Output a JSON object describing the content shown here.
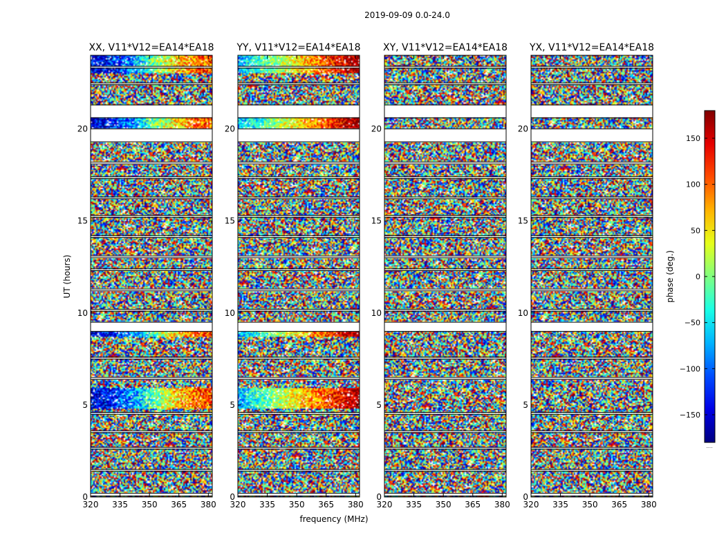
{
  "chart_data": {
    "type": "heatmap",
    "suptitle": "2019-09-09 0.0-24.0",
    "xlabel": "frequency (MHz)",
    "ylabel": "UT (hours)",
    "xlim": [
      320,
      382
    ],
    "ylim": [
      0,
      24
    ],
    "xticks": [
      320,
      335,
      350,
      365,
      380
    ],
    "yticks": [
      0,
      5,
      10,
      15,
      20
    ],
    "panels": [
      {
        "title": "XX, V11*V12=EA14*EA18",
        "pol": "XX"
      },
      {
        "title": "YY, V11*V12=EA14*EA18",
        "pol": "YY"
      },
      {
        "title": "XY, V11*V12=EA14*EA18",
        "pol": "XY"
      },
      {
        "title": "YX, V11*V12=EA14*EA18",
        "pol": "YX"
      }
    ],
    "colorbar": {
      "label": "phase (deg.)",
      "range": [
        -180,
        180
      ],
      "ticks": [
        150,
        100,
        50,
        0,
        -50,
        -100,
        -150
      ],
      "tick_labels": [
        "150",
        "100",
        "50",
        "0",
        "−50",
        "−100",
        "−150"
      ],
      "colormap": "jet",
      "bottom_label": "....."
    },
    "flagged_ut_ranges": [
      [
        0.05,
        0.2
      ],
      [
        1.4,
        1.5
      ],
      [
        2.6,
        2.7
      ],
      [
        3.5,
        3.6
      ],
      [
        4.5,
        4.6
      ],
      [
        6.4,
        6.5
      ],
      [
        7.5,
        7.6
      ],
      [
        9.0,
        9.5
      ],
      [
        10.1,
        10.2
      ],
      [
        11.2,
        11.3
      ],
      [
        12.3,
        12.4
      ],
      [
        13.0,
        13.1
      ],
      [
        14.1,
        14.2
      ],
      [
        15.2,
        15.3
      ],
      [
        16.2,
        16.3
      ],
      [
        17.3,
        17.4
      ],
      [
        18.1,
        18.2
      ],
      [
        19.3,
        20.0
      ],
      [
        20.6,
        21.3
      ],
      [
        22.4,
        22.5
      ],
      [
        23.3,
        23.4
      ]
    ],
    "coherent_ut_ranges": [
      [
        4.8,
        5.9
      ],
      [
        8.7,
        9.0
      ],
      [
        20.0,
        20.6
      ],
      [
        23.0,
        24.0
      ]
    ]
  }
}
